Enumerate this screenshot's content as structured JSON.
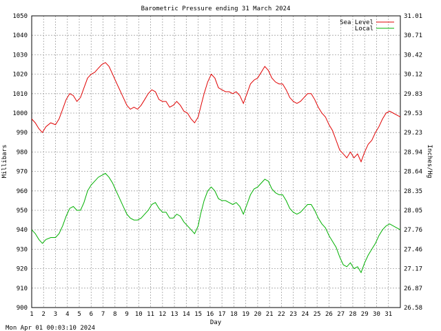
{
  "chart_data": {
    "type": "line",
    "title": "Barometric Pressure ending 31 March 2024",
    "xlabel": "Day",
    "ylabel": "Millibars",
    "y2label": "Inches/Hg",
    "footer": "Mon Apr 01 00:03:10 2024",
    "xlim": [
      1,
      32
    ],
    "ylim": [
      900,
      1050
    ],
    "x_ticks": [
      "1",
      "2",
      "3",
      "4",
      "5",
      "6",
      "7",
      "8",
      "9",
      "10",
      "11",
      "12",
      "13",
      "14",
      "15",
      "16",
      "17",
      "18",
      "19",
      "20",
      "21",
      "22",
      "23",
      "24",
      "25",
      "26",
      "27",
      "28",
      "29",
      "30",
      "31"
    ],
    "y_ticks": [
      "900",
      "910",
      "920",
      "930",
      "940",
      "950",
      "960",
      "970",
      "980",
      "990",
      "1000",
      "1010",
      "1020",
      "1030",
      "1040",
      "1050"
    ],
    "y2_ticks": [
      "26.58",
      "26.87",
      "27.17",
      "27.46",
      "27.76",
      "28.05",
      "28.35",
      "28.64",
      "28.94",
      "29.23",
      "29.53",
      "29.83",
      "30.12",
      "30.42",
      "30.71",
      "31.01"
    ],
    "grid": true,
    "legend": "top-right",
    "series": [
      {
        "name": "Sea Level",
        "color": "#e00000",
        "x": [
          1,
          1.3,
          1.6,
          1.9,
          2.2,
          2.6,
          3,
          3.3,
          3.6,
          3.9,
          4.2,
          4.5,
          4.8,
          5.1,
          5.4,
          5.7,
          6,
          6.3,
          6.6,
          6.9,
          7.2,
          7.5,
          7.8,
          8.1,
          8.4,
          8.7,
          9,
          9.3,
          9.6,
          9.9,
          10.2,
          10.5,
          10.8,
          11.1,
          11.4,
          11.7,
          12,
          12.3,
          12.6,
          12.9,
          13.2,
          13.5,
          13.8,
          14.1,
          14.4,
          14.7,
          15,
          15.2,
          15.5,
          15.8,
          16.1,
          16.4,
          16.7,
          17,
          17.3,
          17.6,
          17.9,
          18.2,
          18.5,
          18.8,
          19.1,
          19.4,
          19.7,
          20,
          20.3,
          20.6,
          20.9,
          21.2,
          21.5,
          21.8,
          22.1,
          22.4,
          22.7,
          23,
          23.3,
          23.6,
          23.9,
          24.2,
          24.5,
          24.8,
          25.1,
          25.4,
          25.7,
          26,
          26.3,
          26.6,
          26.9,
          27.2,
          27.5,
          27.8,
          28.1,
          28.4,
          28.7,
          29,
          29.3,
          29.6,
          29.9,
          30.2,
          30.5,
          30.8,
          31.1,
          31.4,
          31.7,
          32
        ],
        "values": [
          997,
          995,
          992,
          990,
          993,
          995,
          994,
          997,
          1002,
          1007,
          1010,
          1009,
          1006,
          1008,
          1013,
          1018,
          1020,
          1021,
          1023,
          1025,
          1026,
          1024,
          1020,
          1016,
          1012,
          1008,
          1004,
          1002,
          1003,
          1002,
          1004,
          1007,
          1010,
          1012,
          1011,
          1007,
          1006,
          1006,
          1003,
          1004,
          1006,
          1004,
          1001,
          1000,
          997,
          995,
          998,
          1003,
          1010,
          1016,
          1020,
          1018,
          1013,
          1012,
          1011,
          1011,
          1010,
          1011,
          1009,
          1005,
          1010,
          1015,
          1017,
          1018,
          1021,
          1024,
          1022,
          1018,
          1016,
          1015,
          1015,
          1012,
          1008,
          1006,
          1005,
          1006,
          1008,
          1010,
          1010,
          1007,
          1003,
          1000,
          998,
          994,
          991,
          986,
          981,
          979,
          977,
          980,
          977,
          979,
          975,
          980,
          984,
          986,
          990,
          993,
          997,
          1000,
          1001,
          1000,
          999,
          998
        ]
      },
      {
        "name": "Local",
        "color": "#00b000",
        "x": [
          1,
          1.3,
          1.6,
          1.9,
          2.2,
          2.6,
          3,
          3.3,
          3.6,
          3.9,
          4.2,
          4.5,
          4.8,
          5.1,
          5.4,
          5.7,
          6,
          6.3,
          6.6,
          6.9,
          7.2,
          7.5,
          7.8,
          8.1,
          8.4,
          8.7,
          9,
          9.3,
          9.6,
          9.9,
          10.2,
          10.5,
          10.8,
          11.1,
          11.4,
          11.7,
          12,
          12.3,
          12.6,
          12.9,
          13.2,
          13.5,
          13.8,
          14.1,
          14.4,
          14.7,
          15,
          15.2,
          15.5,
          15.8,
          16.1,
          16.4,
          16.7,
          17,
          17.3,
          17.6,
          17.9,
          18.2,
          18.5,
          18.8,
          19.1,
          19.4,
          19.7,
          20,
          20.3,
          20.6,
          20.9,
          21.2,
          21.5,
          21.8,
          22.1,
          22.4,
          22.7,
          23,
          23.3,
          23.6,
          23.9,
          24.2,
          24.5,
          24.8,
          25.1,
          25.4,
          25.7,
          26,
          26.3,
          26.6,
          26.9,
          27.2,
          27.5,
          27.8,
          28.1,
          28.4,
          28.7,
          29,
          29.3,
          29.6,
          29.9,
          30.2,
          30.5,
          30.8,
          31.1,
          31.4,
          31.7,
          32
        ],
        "values": [
          940,
          938,
          935,
          933,
          935,
          936,
          936,
          938,
          942,
          947,
          951,
          952,
          950,
          950,
          954,
          960,
          963,
          965,
          967,
          968,
          969,
          967,
          964,
          960,
          956,
          952,
          948,
          946,
          945,
          945,
          946,
          948,
          950,
          953,
          954,
          951,
          949,
          949,
          946,
          946,
          948,
          947,
          944,
          942,
          940,
          938,
          942,
          948,
          955,
          960,
          962,
          960,
          956,
          955,
          955,
          954,
          953,
          954,
          952,
          948,
          953,
          958,
          961,
          962,
          964,
          966,
          965,
          961,
          959,
          958,
          958,
          955,
          951,
          949,
          948,
          949,
          951,
          953,
          953,
          950,
          946,
          943,
          941,
          937,
          934,
          931,
          926,
          922,
          921,
          923,
          920,
          921,
          918,
          923,
          927,
          930,
          933,
          937,
          940,
          942,
          943,
          942,
          941,
          940
        ]
      }
    ]
  }
}
